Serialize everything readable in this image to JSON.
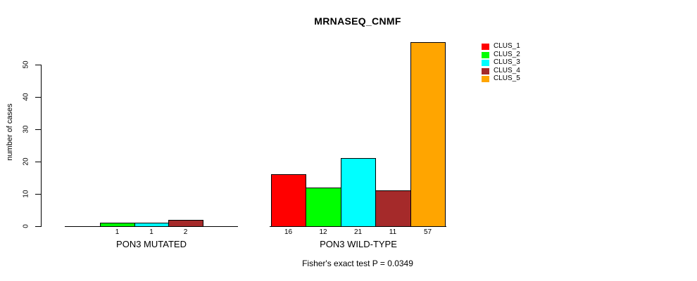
{
  "chart_data": {
    "type": "bar",
    "title": "MRNASEQ_CNMF",
    "ylabel": "number of cases",
    "xlabel": "",
    "footer": "Fisher's exact test P = 0.0349",
    "ylim": [
      0,
      57
    ],
    "yticks": [
      0,
      10,
      20,
      30,
      40,
      50
    ],
    "grid": false,
    "legend_position": "top-right",
    "categories": [
      "PON3 MUTATED",
      "PON3 WILD-TYPE"
    ],
    "series": [
      {
        "name": "CLUS_1",
        "color": "#ff0000",
        "values": [
          0,
          16
        ]
      },
      {
        "name": "CLUS_2",
        "color": "#00ff00",
        "values": [
          1,
          12
        ]
      },
      {
        "name": "CLUS_3",
        "color": "#00ffff",
        "values": [
          1,
          21
        ]
      },
      {
        "name": "CLUS_4",
        "color": "#a52a2a",
        "values": [
          2,
          11
        ]
      },
      {
        "name": "CLUS_5",
        "color": "#ffa500",
        "values": [
          0,
          57
        ]
      }
    ],
    "bar_value_labels": [
      [
        "",
        "1",
        "1",
        "2",
        ""
      ],
      [
        "16",
        "12",
        "21",
        "11",
        "57"
      ]
    ]
  }
}
